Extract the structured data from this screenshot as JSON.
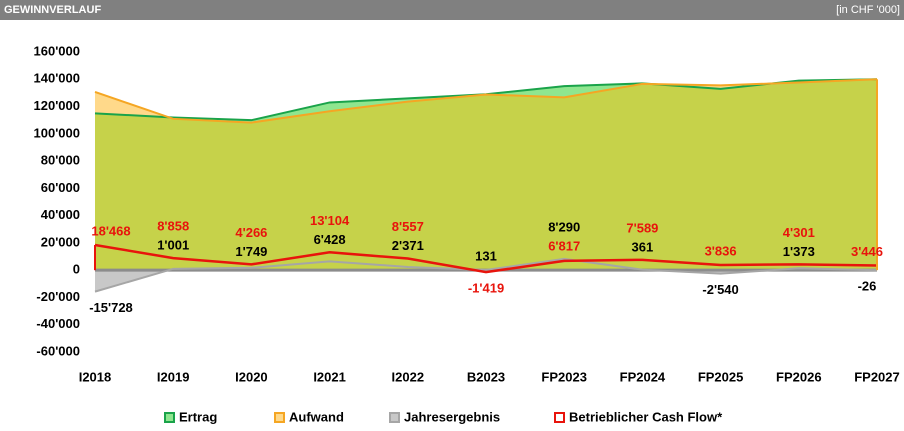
{
  "chart_data": {
    "type": "area",
    "title": "GEWINNVERLAUF",
    "subtitle": "[in CHF '000]",
    "categories": [
      "I2018",
      "I2019",
      "I2020",
      "I2021",
      "I2022",
      "B2023",
      "FP2023",
      "FP2024",
      "FP2025",
      "FP2026",
      "FP2027"
    ],
    "ylim": [
      -60000,
      160000
    ],
    "yticks": [
      {
        "value": -60000,
        "label": "-60'000"
      },
      {
        "value": -40000,
        "label": "-40'000"
      },
      {
        "value": -20000,
        "label": "-20'000"
      },
      0,
      {
        "value": 20000,
        "label": "20'000"
      },
      {
        "value": 40000,
        "label": "40'000"
      },
      {
        "value": 60000,
        "label": "60'000"
      },
      {
        "value": 80000,
        "label": "80'000"
      },
      {
        "value": 100000,
        "label": "100'000"
      },
      {
        "value": 120000,
        "label": "120'000"
      },
      {
        "value": 140000,
        "label": "140'000"
      },
      {
        "value": 160000,
        "label": "160'000"
      }
    ],
    "series": [
      {
        "name": "Ertrag",
        "type": "area",
        "color": "#1aa34a",
        "fill": "#8fe68f",
        "values": [
          115000,
          112000,
          110000,
          123000,
          126000,
          129000,
          135000,
          137000,
          133000,
          139000,
          140000
        ]
      },
      {
        "name": "Aufwand",
        "type": "area",
        "color": "#f5a623",
        "fill": "#ffd98a",
        "values": [
          130728,
          111000,
          108251,
          116572,
          123629,
          128869,
          126710,
          136639,
          135540,
          137627,
          140026
        ]
      },
      {
        "name": "Jahresergebnis",
        "type": "area",
        "color": "#a6a6a6",
        "fill": "#c8c8c8",
        "label_color": "#000000",
        "values": [
          -15728,
          1001,
          1749,
          6428,
          2371,
          131,
          8290,
          361,
          -2540,
          1373,
          -26
        ],
        "value_labels": [
          "-15'728",
          "1'001",
          "1'749",
          "6'428",
          "2'371",
          "131",
          "8'290",
          "361",
          "-2'540",
          "1'373",
          "-26"
        ]
      },
      {
        "name": "Betrieblicher Cash Flow*",
        "type": "line",
        "color": "#e8140c",
        "fill": "#ffffff",
        "label_color": "#e8140c",
        "values": [
          18468,
          8858,
          4266,
          13104,
          8557,
          -1419,
          6817,
          7589,
          3836,
          4301,
          3446
        ],
        "value_labels": [
          "18'468",
          "8'858",
          "4'266",
          "13'104",
          "8'557",
          "-1'419",
          "6'817",
          "7'589",
          "3'836",
          "4'301",
          "3'446"
        ]
      }
    ],
    "overlap_fill": "#c6d24a"
  }
}
